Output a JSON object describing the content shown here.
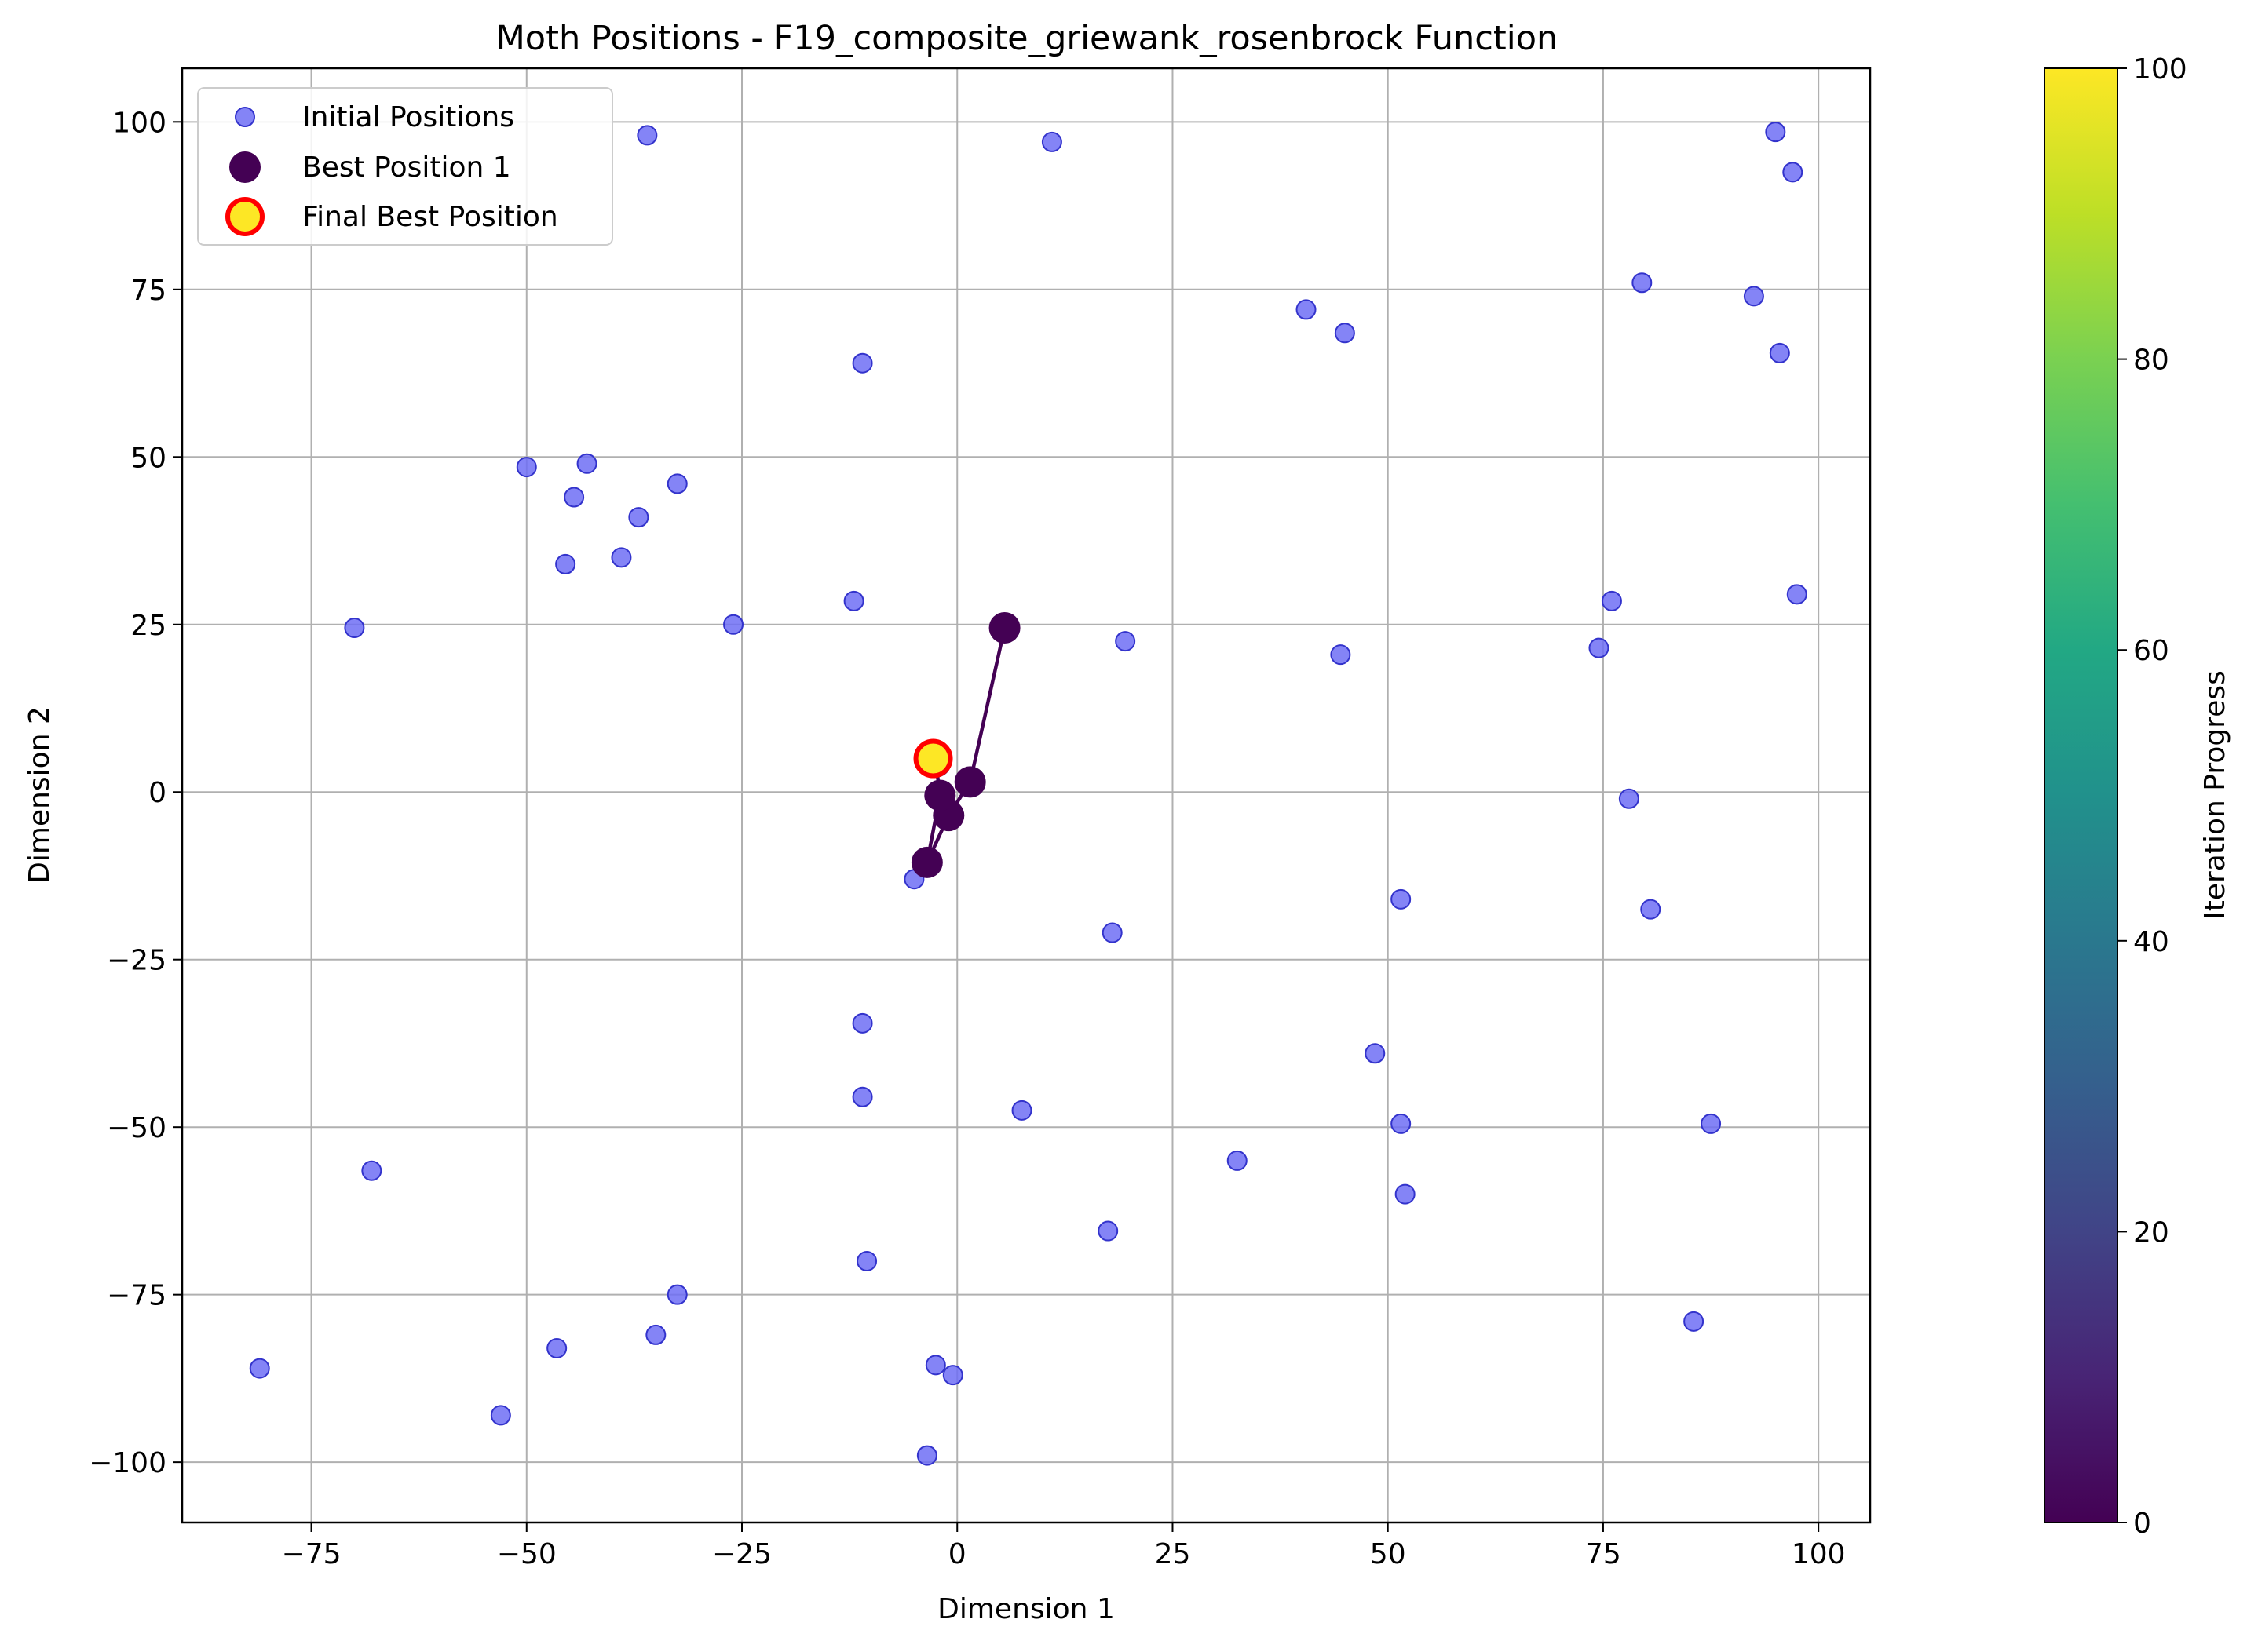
{
  "chart_data": {
    "type": "scatter",
    "title": "Moth Positions - F19_composite_griewank_rosenbrock Function",
    "xlabel": "Dimension 1",
    "ylabel": "Dimension 2",
    "xlim": [
      -90,
      106
    ],
    "ylim": [
      -109,
      108
    ],
    "x_ticks": [
      -75,
      -50,
      -25,
      0,
      25,
      50,
      75,
      100
    ],
    "x_tick_labels": [
      "−75",
      "−50",
      "−25",
      "0",
      "25",
      "50",
      "75",
      "100"
    ],
    "y_ticks": [
      -100,
      -75,
      -50,
      -25,
      0,
      25,
      50,
      75,
      100
    ],
    "y_tick_labels": [
      "−100",
      "−75",
      "−50",
      "−25",
      "0",
      "25",
      "50",
      "75",
      "100"
    ],
    "grid": true,
    "legend_position": "upper-left",
    "legend": {
      "initial": "Initial Positions",
      "best": "Best Position 1",
      "final": "Final Best Position"
    },
    "colors": {
      "initial_fill": "#6e6ef5",
      "initial_edge": "#3333cc",
      "best": "#440154",
      "final_fill": "#fde725",
      "final_edge": "#ff0000",
      "grid": "#b0b0b0"
    },
    "initial_positions": [
      [
        -36,
        98
      ],
      [
        11,
        97
      ],
      [
        95,
        98.5
      ],
      [
        97,
        92.5
      ],
      [
        79.5,
        76
      ],
      [
        92.5,
        74
      ],
      [
        95.5,
        65.5
      ],
      [
        40.5,
        72
      ],
      [
        45,
        68.5
      ],
      [
        -11,
        64
      ],
      [
        -50,
        48.5
      ],
      [
        -43,
        49
      ],
      [
        -44.5,
        44
      ],
      [
        -32.5,
        46
      ],
      [
        -37,
        41
      ],
      [
        -45.5,
        34
      ],
      [
        -39,
        35
      ],
      [
        -70,
        24.5
      ],
      [
        -26,
        25
      ],
      [
        -12,
        28.5
      ],
      [
        19.5,
        22.5
      ],
      [
        44.5,
        20.5
      ],
      [
        76,
        28.5
      ],
      [
        74.5,
        21.5
      ],
      [
        97.5,
        29.5
      ],
      [
        78,
        -1
      ],
      [
        -2.5,
        0
      ],
      [
        -5,
        -13
      ],
      [
        51.5,
        -16
      ],
      [
        80.5,
        -17.5
      ],
      [
        18,
        -21
      ],
      [
        -11,
        -34.5
      ],
      [
        48.5,
        -39
      ],
      [
        -11,
        -45.5
      ],
      [
        7.5,
        -47.5
      ],
      [
        51.5,
        -49.5
      ],
      [
        87.5,
        -49.5
      ],
      [
        -68,
        -56.5
      ],
      [
        32.5,
        -55
      ],
      [
        52,
        -60
      ],
      [
        17.5,
        -65.5
      ],
      [
        -10.5,
        -70
      ],
      [
        -32.5,
        -75
      ],
      [
        -35,
        -81
      ],
      [
        -46.5,
        -83
      ],
      [
        85.5,
        -79
      ],
      [
        -81,
        -86
      ],
      [
        -2.5,
        -85.5
      ],
      [
        -0.5,
        -87
      ],
      [
        -53,
        -93
      ],
      [
        -3.5,
        -99
      ]
    ],
    "best_positions": [
      [
        5.5,
        24.5
      ],
      [
        1.5,
        1.5
      ],
      [
        -1,
        -3.5
      ],
      [
        -3.5,
        -10.5
      ],
      [
        -2,
        -0.5
      ],
      [
        -2.5,
        4.5
      ]
    ],
    "final_best": [
      -2.8,
      5
    ],
    "colorbar": {
      "label": "Iteration Progress",
      "range": [
        0,
        100
      ],
      "ticks": [
        0,
        20,
        40,
        60,
        80,
        100
      ],
      "colormap": "viridis"
    }
  }
}
